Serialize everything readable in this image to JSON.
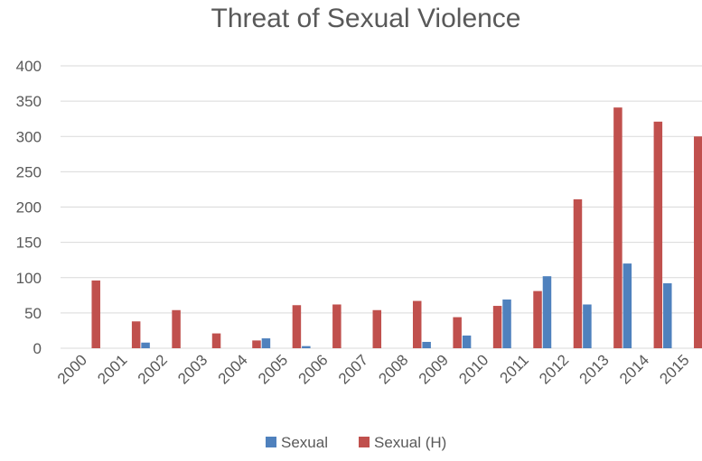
{
  "chart_data": {
    "type": "bar",
    "title": "Threat of Sexual Violence",
    "xlabel": "",
    "ylabel": "",
    "categories": [
      "2000",
      "2001",
      "2002",
      "2003",
      "2004",
      "2005",
      "2006",
      "2007",
      "2008",
      "2009",
      "2010",
      "2011",
      "2012",
      "2013",
      "2014",
      "2015"
    ],
    "series": [
      {
        "name": "Sexual",
        "color": "#4f81bd",
        "values": [
          0,
          0,
          8,
          0,
          0,
          14,
          3,
          0,
          0,
          9,
          18,
          69,
          102,
          62,
          120,
          92
        ]
      },
      {
        "name": "Sexual (H)",
        "color": "#c0504d",
        "values": [
          96,
          38,
          54,
          21,
          11,
          61,
          62,
          54,
          67,
          44,
          60,
          81,
          211,
          341,
          321,
          300
        ]
      }
    ],
    "ylim": [
      0,
      400
    ],
    "yticks": [
      0,
      50,
      100,
      150,
      200,
      250,
      300,
      350,
      400
    ],
    "grid": true,
    "legend_position": "bottom"
  }
}
